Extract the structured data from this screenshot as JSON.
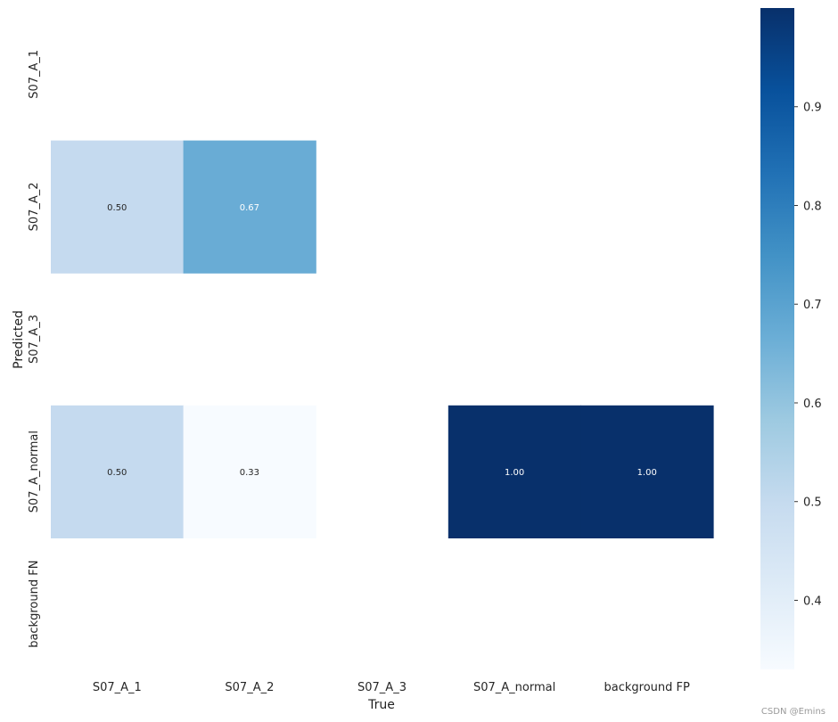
{
  "chart_data": {
    "type": "heatmap",
    "xlabel": "True",
    "ylabel": "Predicted",
    "x_categories": [
      "S07_A_1",
      "S07_A_2",
      "S07_A_3",
      "S07_A_normal",
      "background FP"
    ],
    "y_categories": [
      "S07_A_1",
      "S07_A_2",
      "S07_A_3",
      "S07_A_normal",
      "background FN"
    ],
    "values": [
      [
        null,
        null,
        null,
        null,
        null
      ],
      [
        0.5,
        0.67,
        null,
        null,
        null
      ],
      [
        null,
        null,
        null,
        null,
        null
      ],
      [
        0.5,
        0.33,
        null,
        1.0,
        1.0
      ],
      [
        null,
        null,
        null,
        null,
        null
      ]
    ],
    "cell_labels": [
      [
        "",
        "",
        "",
        "",
        ""
      ],
      [
        "0.50",
        "0.67",
        "",
        "",
        ""
      ],
      [
        "",
        "",
        "",
        "",
        ""
      ],
      [
        "0.50",
        "0.33",
        "",
        "1.00",
        "1.00"
      ],
      [
        "",
        "",
        "",
        "",
        ""
      ]
    ],
    "colorbar": {
      "colormap": "Blues",
      "range": [
        0.33,
        1.0
      ],
      "ticks": [
        0.4,
        0.5,
        0.6,
        0.7,
        0.8,
        0.9
      ],
      "tick_labels": [
        "0.4",
        "0.5",
        "0.6",
        "0.7",
        "0.8",
        "0.9"
      ]
    },
    "grid": false
  },
  "watermark": "CSDN @Emins"
}
